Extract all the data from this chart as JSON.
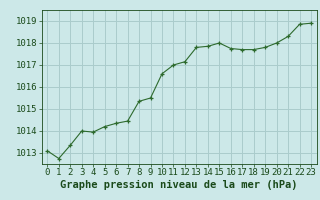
{
  "x": [
    0,
    1,
    2,
    3,
    4,
    5,
    6,
    7,
    8,
    9,
    10,
    11,
    12,
    13,
    14,
    15,
    16,
    17,
    18,
    19,
    20,
    21,
    22,
    23
  ],
  "y": [
    1013.1,
    1012.75,
    1013.35,
    1014.0,
    1013.95,
    1014.2,
    1014.35,
    1014.45,
    1015.35,
    1015.5,
    1016.6,
    1017.0,
    1017.15,
    1017.8,
    1017.85,
    1018.0,
    1017.75,
    1017.7,
    1017.7,
    1017.8,
    1018.0,
    1018.3,
    1018.85,
    1018.9
  ],
  "line_color": "#2d6a2d",
  "marker": "+",
  "bg_color": "#cce8e8",
  "grid_color": "#aacccc",
  "xlabel": "Graphe pression niveau de la mer (hPa)",
  "xlabel_color": "#1a4a1a",
  "tick_color": "#1a4a1a",
  "ylim": [
    1012.5,
    1019.5
  ],
  "yticks": [
    1013,
    1014,
    1015,
    1016,
    1017,
    1018,
    1019
  ],
  "xlim": [
    -0.5,
    23.5
  ],
  "xticks": [
    0,
    1,
    2,
    3,
    4,
    5,
    6,
    7,
    8,
    9,
    10,
    11,
    12,
    13,
    14,
    15,
    16,
    17,
    18,
    19,
    20,
    21,
    22,
    23
  ],
  "fontsize_axis": 6.5,
  "fontsize_xlabel": 7.5
}
